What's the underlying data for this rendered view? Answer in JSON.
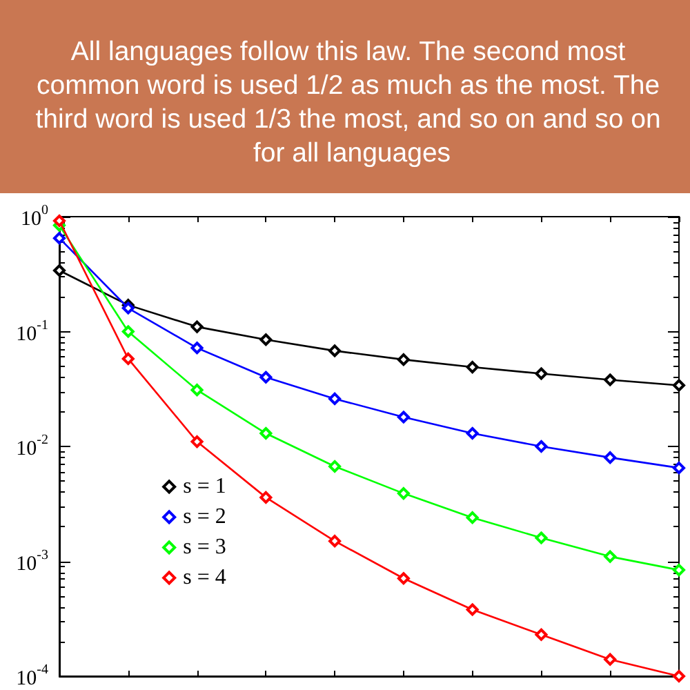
{
  "chart_data": {
    "type": "line",
    "title": "All languages follow this law. The second most common word is used 1/2 as much as the most. The third word is used 1/3 the most, and so on and so on for all languages",
    "categories": [
      null,
      null,
      null,
      null,
      null,
      null,
      null,
      null,
      null,
      null
    ],
    "series": [
      {
        "name": "s = 1",
        "color": "#000000",
        "values": [
          0.34,
          0.17,
          0.11,
          0.085,
          0.068,
          0.057,
          0.049,
          0.043,
          0.038,
          0.034
        ]
      },
      {
        "name": "s = 2",
        "color": "#0000ff",
        "values": [
          0.65,
          0.16,
          0.072,
          0.04,
          0.026,
          0.018,
          0.013,
          0.01,
          0.008,
          0.0065
        ]
      },
      {
        "name": "s = 3",
        "color": "#00ff00",
        "values": [
          0.84,
          0.1,
          0.031,
          0.013,
          0.0067,
          0.0039,
          0.0024,
          0.0016,
          0.0011,
          0.00084
        ]
      },
      {
        "name": "s = 4",
        "color": "#ff0000",
        "values": [
          0.92,
          0.058,
          0.011,
          0.0036,
          0.0015,
          0.00071,
          0.00038,
          0.00023,
          0.00014,
          0.0001
        ]
      }
    ],
    "ylim": [
      0.0001,
      1
    ],
    "yticks": [
      {
        "value": 0.0001,
        "label": "10$^{-4}$"
      },
      {
        "value": 0.0002,
        "label": null
      },
      {
        "value": 0.0003,
        "label": null
      },
      {
        "value": 0.0004,
        "label": null
      },
      {
        "value": 0.0005,
        "label": null
      },
      {
        "value": 0.0006,
        "label": null
      },
      {
        "value": 0.0007,
        "label": null
      },
      {
        "value": 0.0008,
        "label": null
      },
      {
        "value": 0.0009,
        "label": null
      },
      {
        "value": 0.001,
        "label": "10$^{-3}$"
      },
      {
        "value": 0.002,
        "label": null
      },
      {
        "value": 0.003,
        "label": null
      },
      {
        "value": 0.004,
        "label": null
      },
      {
        "value": 0.005,
        "label": null
      },
      {
        "value": 0.006,
        "label": null
      },
      {
        "value": 0.007,
        "label": null
      },
      {
        "value": 0.008,
        "label": null
      },
      {
        "value": 0.009,
        "label": null
      },
      {
        "value": 0.01,
        "label": "10$^{-2}$"
      },
      {
        "value": 0.02,
        "label": null
      },
      {
        "value": 0.03,
        "label": null
      },
      {
        "value": 0.04,
        "label": null
      },
      {
        "value": 0.05,
        "label": null
      },
      {
        "value": 0.06,
        "label": null
      },
      {
        "value": 0.07,
        "label": null
      },
      {
        "value": 0.08,
        "label": null
      },
      {
        "value": 0.09,
        "label": null
      },
      {
        "value": 0.1,
        "label": "10$^{-1}$"
      },
      {
        "value": 0.2,
        "label": null
      },
      {
        "value": 0.3,
        "label": null
      },
      {
        "value": 0.4,
        "label": null
      },
      {
        "value": 0.5,
        "label": null
      },
      {
        "value": 0.6,
        "label": null
      },
      {
        "value": 0.7,
        "label": null
      },
      {
        "value": 0.8,
        "label": null
      },
      {
        "value": 0.9,
        "label": null
      },
      {
        "value": 1,
        "label": "10$^{0}$"
      }
    ],
    "log": "y",
    "grid": false,
    "legend": "bottom left",
    "marker": "diamond",
    "line_style": "solid",
    "tick_labels": "y"
  }
}
